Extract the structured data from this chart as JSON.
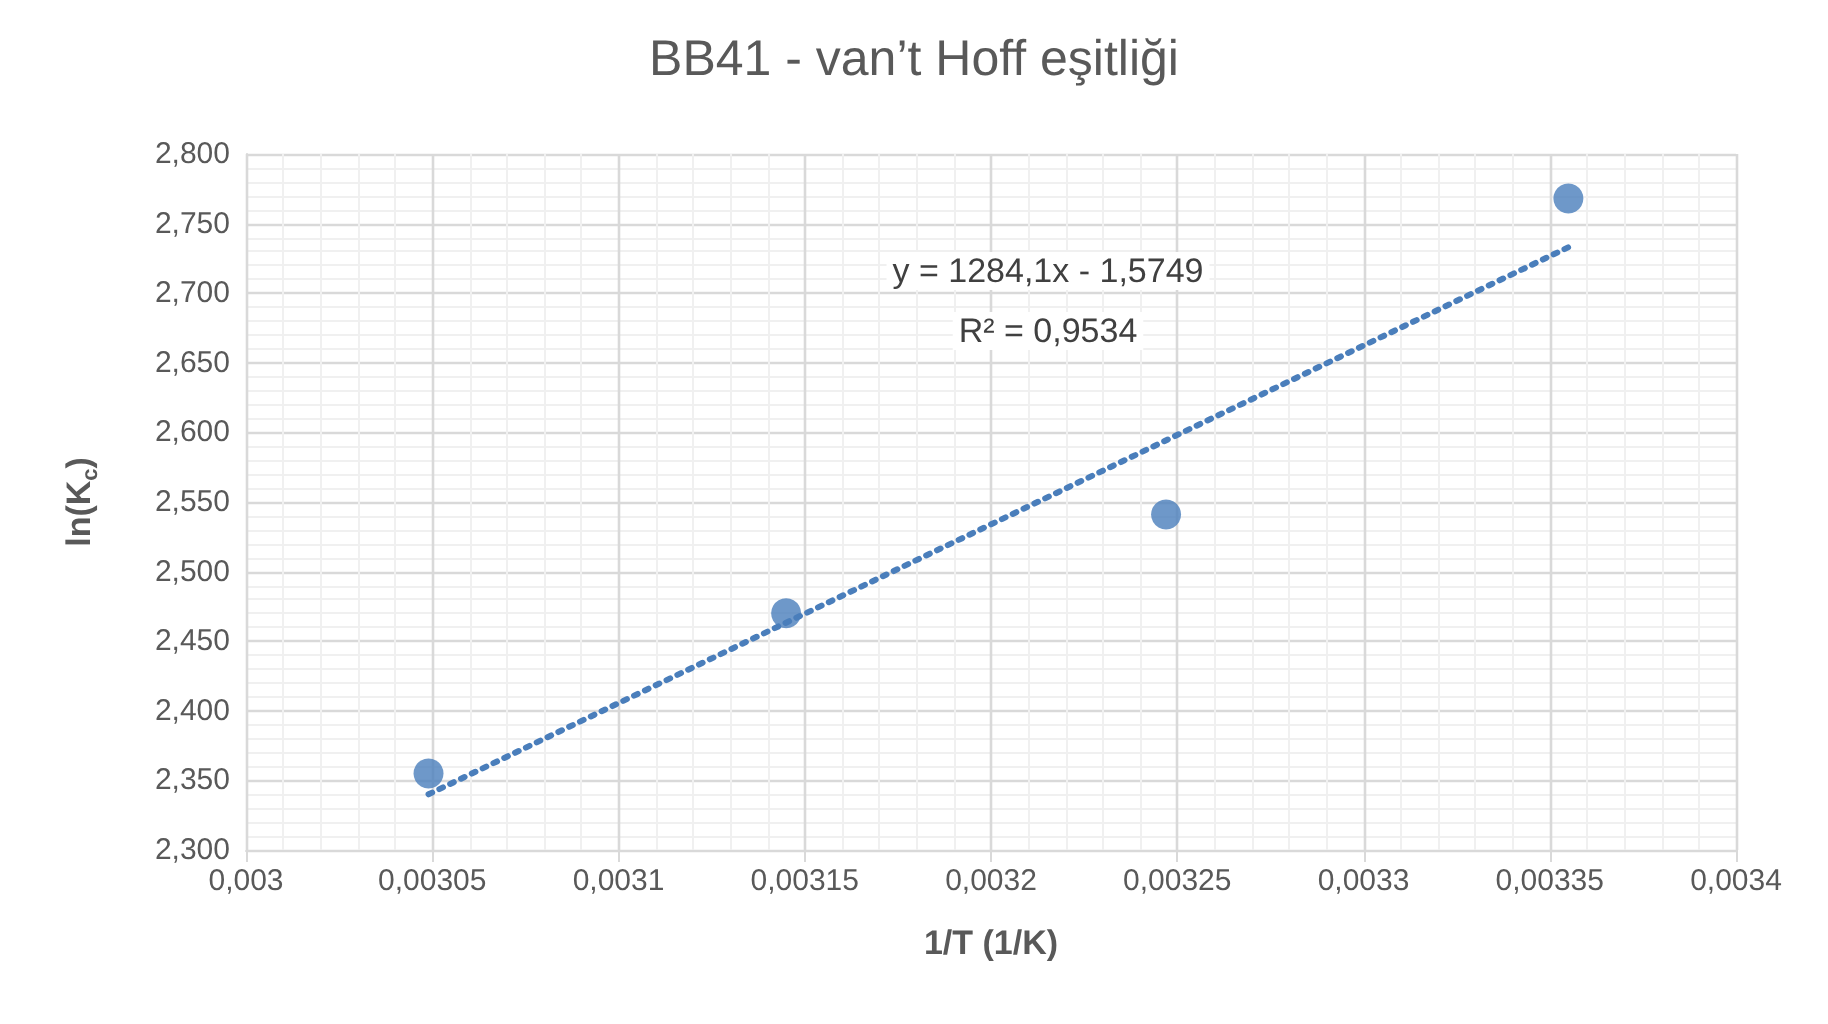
{
  "chart_data": {
    "type": "scatter",
    "title": "BB41 - van’t Hoff eşitliği",
    "xlabel": "1/T (1/K)",
    "ylabel": "ln(K$_{c}$)",
    "series": [
      {
        "color": "#4a7ebb",
        "x": [
          0.003049,
          0.003145,
          0.003247,
          0.003355
        ],
        "values": [
          2.355,
          2.47,
          2.541,
          2.768
        ],
        "marker": "circle"
      },
      {
        "type": "line",
        "color": "#4a7ebb",
        "x": [
          0.003049,
          0.003355
        ],
        "values": [
          2.34,
          2.733
        ],
        "line_style": "dotted",
        "marker": "none"
      }
    ],
    "annotations": [
      "y = 1284,1x - 1,5749",
      "R² = 0,9534"
    ],
    "xlim": [
      0.003,
      0.0034
    ],
    "xticks": [
      {
        "value": 0.003,
        "label": "0,003"
      },
      {
        "value": 0.00305,
        "label": "0,00305"
      },
      {
        "value": 0.0031,
        "label": "0,0031"
      },
      {
        "value": 0.00315,
        "label": "0,00315"
      },
      {
        "value": 0.0032,
        "label": "0,0032"
      },
      {
        "value": 0.00325,
        "label": "0,00325"
      },
      {
        "value": 0.0033,
        "label": "0,0033"
      },
      {
        "value": 0.00335,
        "label": "0,00335"
      },
      {
        "value": 0.0034,
        "label": "0,0034"
      }
    ],
    "ylim": [
      2.3,
      2.8
    ],
    "yticks": [
      {
        "value": 2.3,
        "label": "2,300"
      },
      {
        "value": 2.35,
        "label": "2,350"
      },
      {
        "value": 2.4,
        "label": "2,400"
      },
      {
        "value": 2.45,
        "label": "2,450"
      },
      {
        "value": 2.5,
        "label": "2,500"
      },
      {
        "value": 2.55,
        "label": "2,550"
      },
      {
        "value": 2.6,
        "label": "2,600"
      },
      {
        "value": 2.65,
        "label": "2,650"
      },
      {
        "value": 2.7,
        "label": "2,700"
      },
      {
        "value": 2.75,
        "label": "2,750"
      },
      {
        "value": 2.8,
        "label": "2,800"
      }
    ],
    "grid": true
  }
}
